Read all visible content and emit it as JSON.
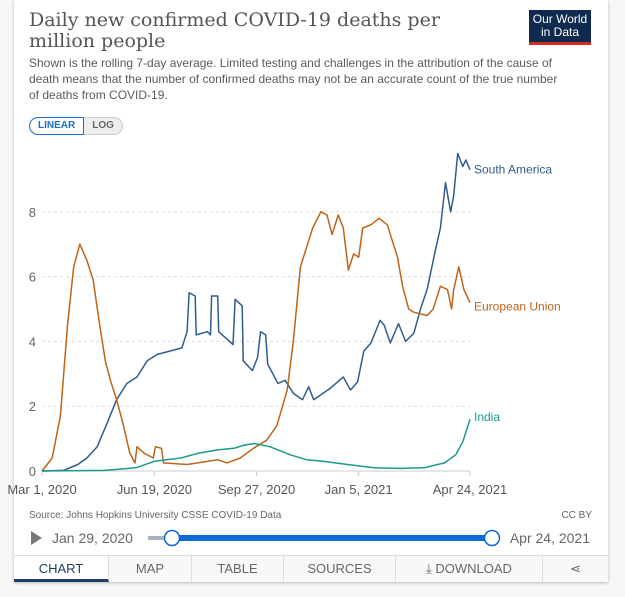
{
  "header": {
    "title": "Daily new confirmed COVID-19 deaths per million people",
    "subtitle": "Shown is the rolling 7-day average. Limited testing and challenges in the attribution of the cause of death means that the number of confirmed deaths may not be an accurate count of the true number of deaths from COVID-19.",
    "logo": "Our World in Data"
  },
  "scale_toggle": {
    "linear": "LINEAR",
    "log": "LOG",
    "selected": "LINEAR"
  },
  "footer": {
    "source": "Source: Johns Hopkins University CSSE COVID-19 Data",
    "license": "CC BY"
  },
  "timeline": {
    "start": "Jan 29, 2020",
    "end": "Apr 24, 2021",
    "selected_start": "2020-03-01",
    "selected_end": "2021-04-24"
  },
  "tabs": [
    {
      "label": "CHART",
      "active": true
    },
    {
      "label": "MAP"
    },
    {
      "label": "TABLE"
    },
    {
      "label": "SOURCES"
    },
    {
      "label": "DOWNLOAD",
      "icon": "download-icon"
    },
    {
      "label": "",
      "icon": "share-icon"
    }
  ],
  "chart_data": {
    "type": "line",
    "title": "Daily new confirmed COVID-19 deaths per million people",
    "xlim": [
      "2020-03-01",
      "2021-04-24"
    ],
    "ylim": [
      0,
      10
    ],
    "grid": true,
    "legend": "line-end labels",
    "xticks": [
      {
        "date": "2020-03-01",
        "label": "Mar 1, 2020"
      },
      {
        "date": "2020-06-19",
        "label": "Jun 19, 2020"
      },
      {
        "date": "2020-09-27",
        "label": "Sep 27, 2020"
      },
      {
        "date": "2021-01-05",
        "label": "Jan 5, 2021"
      },
      {
        "date": "2021-04-24",
        "label": "Apr 24, 2021"
      }
    ],
    "yticks": [
      0,
      2,
      4,
      6,
      8
    ],
    "series": [
      {
        "name": "South America",
        "color": "#2f5d8c",
        "points": [
          [
            "2020-03-01",
            0
          ],
          [
            "2020-03-22",
            0.02
          ],
          [
            "2020-04-05",
            0.2
          ],
          [
            "2020-04-14",
            0.4
          ],
          [
            "2020-04-24",
            0.75
          ],
          [
            "2020-05-04",
            1.5
          ],
          [
            "2020-05-13",
            2.2
          ],
          [
            "2020-05-23",
            2.7
          ],
          [
            "2020-06-02",
            2.9
          ],
          [
            "2020-06-12",
            3.4
          ],
          [
            "2020-06-22",
            3.6
          ],
          [
            "2020-07-04",
            3.7
          ],
          [
            "2020-07-16",
            3.8
          ],
          [
            "2020-07-21",
            4.3
          ],
          [
            "2020-07-23",
            5.5
          ],
          [
            "2020-07-29",
            5.4
          ],
          [
            "2020-07-30",
            4.2
          ],
          [
            "2020-08-10",
            4.3
          ],
          [
            "2020-08-13",
            4.2
          ],
          [
            "2020-08-14",
            5.4
          ],
          [
            "2020-08-20",
            5.4
          ],
          [
            "2020-08-21",
            4.3
          ],
          [
            "2020-09-04",
            3.9
          ],
          [
            "2020-09-06",
            5.3
          ],
          [
            "2020-09-13",
            5.1
          ],
          [
            "2020-09-14",
            3.4
          ],
          [
            "2020-09-23",
            3.1
          ],
          [
            "2020-09-28",
            3.5
          ],
          [
            "2020-10-01",
            4.3
          ],
          [
            "2020-10-06",
            4.2
          ],
          [
            "2020-10-08",
            3.3
          ],
          [
            "2020-10-18",
            2.7
          ],
          [
            "2020-10-25",
            2.8
          ],
          [
            "2020-11-02",
            2.4
          ],
          [
            "2020-11-11",
            2.2
          ],
          [
            "2020-11-17",
            2.6
          ],
          [
            "2020-11-22",
            2.2
          ],
          [
            "2020-12-08",
            2.55
          ],
          [
            "2020-12-21",
            2.9
          ],
          [
            "2020-12-28",
            2.5
          ],
          [
            "2021-01-04",
            2.75
          ],
          [
            "2021-01-10",
            3.7
          ],
          [
            "2021-01-17",
            3.95
          ],
          [
            "2021-01-26",
            4.65
          ],
          [
            "2021-01-30",
            4.5
          ],
          [
            "2021-02-05",
            3.95
          ],
          [
            "2021-02-13",
            4.55
          ],
          [
            "2021-02-20",
            4.0
          ],
          [
            "2021-02-28",
            4.25
          ],
          [
            "2021-03-07",
            5.05
          ],
          [
            "2021-03-13",
            5.6
          ],
          [
            "2021-03-21",
            6.8
          ],
          [
            "2021-03-26",
            7.5
          ],
          [
            "2021-03-31",
            8.9
          ],
          [
            "2021-04-05",
            8.0
          ],
          [
            "2021-04-08",
            8.5
          ],
          [
            "2021-04-12",
            9.8
          ],
          [
            "2021-04-17",
            9.4
          ],
          [
            "2021-04-20",
            9.6
          ],
          [
            "2021-04-24",
            9.3
          ]
        ]
      },
      {
        "name": "European Union",
        "color": "#bf6418",
        "points": [
          [
            "2020-03-01",
            0
          ],
          [
            "2020-03-11",
            0.4
          ],
          [
            "2020-03-19",
            1.7
          ],
          [
            "2020-03-26",
            4.5
          ],
          [
            "2020-04-01",
            6.3
          ],
          [
            "2020-04-07",
            7.0
          ],
          [
            "2020-04-14",
            6.5
          ],
          [
            "2020-04-20",
            5.9
          ],
          [
            "2020-04-27",
            4.4
          ],
          [
            "2020-05-02",
            3.4
          ],
          [
            "2020-05-07",
            2.8
          ],
          [
            "2020-05-13",
            2.2
          ],
          [
            "2020-05-19",
            1.5
          ],
          [
            "2020-05-26",
            0.55
          ],
          [
            "2020-05-31",
            0.25
          ],
          [
            "2020-06-02",
            0.75
          ],
          [
            "2020-06-09",
            0.55
          ],
          [
            "2020-06-18",
            0.4
          ],
          [
            "2020-06-20",
            0.75
          ],
          [
            "2020-06-26",
            0.7
          ],
          [
            "2020-06-28",
            0.25
          ],
          [
            "2020-07-21",
            0.2
          ],
          [
            "2020-08-20",
            0.35
          ],
          [
            "2020-08-29",
            0.25
          ],
          [
            "2020-09-11",
            0.4
          ],
          [
            "2020-09-24",
            0.7
          ],
          [
            "2020-10-07",
            0.95
          ],
          [
            "2020-10-17",
            1.4
          ],
          [
            "2020-10-27",
            2.5
          ],
          [
            "2020-11-02",
            4.0
          ],
          [
            "2020-11-09",
            6.3
          ],
          [
            "2020-11-21",
            7.5
          ],
          [
            "2020-11-29",
            8.0
          ],
          [
            "2020-12-05",
            7.9
          ],
          [
            "2020-12-10",
            7.3
          ],
          [
            "2020-12-16",
            7.9
          ],
          [
            "2020-12-21",
            7.5
          ],
          [
            "2020-12-26",
            6.2
          ],
          [
            "2020-12-31",
            6.7
          ],
          [
            "2021-01-05",
            6.6
          ],
          [
            "2021-01-09",
            7.5
          ],
          [
            "2021-01-17",
            7.6
          ],
          [
            "2021-01-25",
            7.8
          ],
          [
            "2021-02-02",
            7.6
          ],
          [
            "2021-02-07",
            7.1
          ],
          [
            "2021-02-12",
            6.6
          ],
          [
            "2021-02-17",
            5.7
          ],
          [
            "2021-02-23",
            5.0
          ],
          [
            "2021-02-28",
            4.9
          ],
          [
            "2021-03-13",
            4.8
          ],
          [
            "2021-03-19",
            5.0
          ],
          [
            "2021-03-26",
            5.7
          ],
          [
            "2021-04-02",
            5.6
          ],
          [
            "2021-04-06",
            5.0
          ],
          [
            "2021-04-08",
            5.6
          ],
          [
            "2021-04-13",
            6.3
          ],
          [
            "2021-04-18",
            5.6
          ],
          [
            "2021-04-24",
            5.2
          ]
        ]
      },
      {
        "name": "India",
        "color": "#1b9a8c",
        "points": [
          [
            "2020-03-01",
            0
          ],
          [
            "2020-05-01",
            0.02
          ],
          [
            "2020-06-01",
            0.1
          ],
          [
            "2020-06-19",
            0.3
          ],
          [
            "2020-07-15",
            0.4
          ],
          [
            "2020-08-01",
            0.55
          ],
          [
            "2020-08-20",
            0.65
          ],
          [
            "2020-09-05",
            0.7
          ],
          [
            "2020-09-15",
            0.8
          ],
          [
            "2020-09-25",
            0.85
          ],
          [
            "2020-10-10",
            0.75
          ],
          [
            "2020-10-30",
            0.5
          ],
          [
            "2020-11-15",
            0.35
          ],
          [
            "2020-12-01",
            0.3
          ],
          [
            "2020-12-25",
            0.2
          ],
          [
            "2021-01-20",
            0.1
          ],
          [
            "2021-02-15",
            0.08
          ],
          [
            "2021-03-10",
            0.1
          ],
          [
            "2021-03-30",
            0.25
          ],
          [
            "2021-04-10",
            0.5
          ],
          [
            "2021-04-17",
            0.9
          ],
          [
            "2021-04-24",
            1.6
          ]
        ]
      }
    ]
  }
}
